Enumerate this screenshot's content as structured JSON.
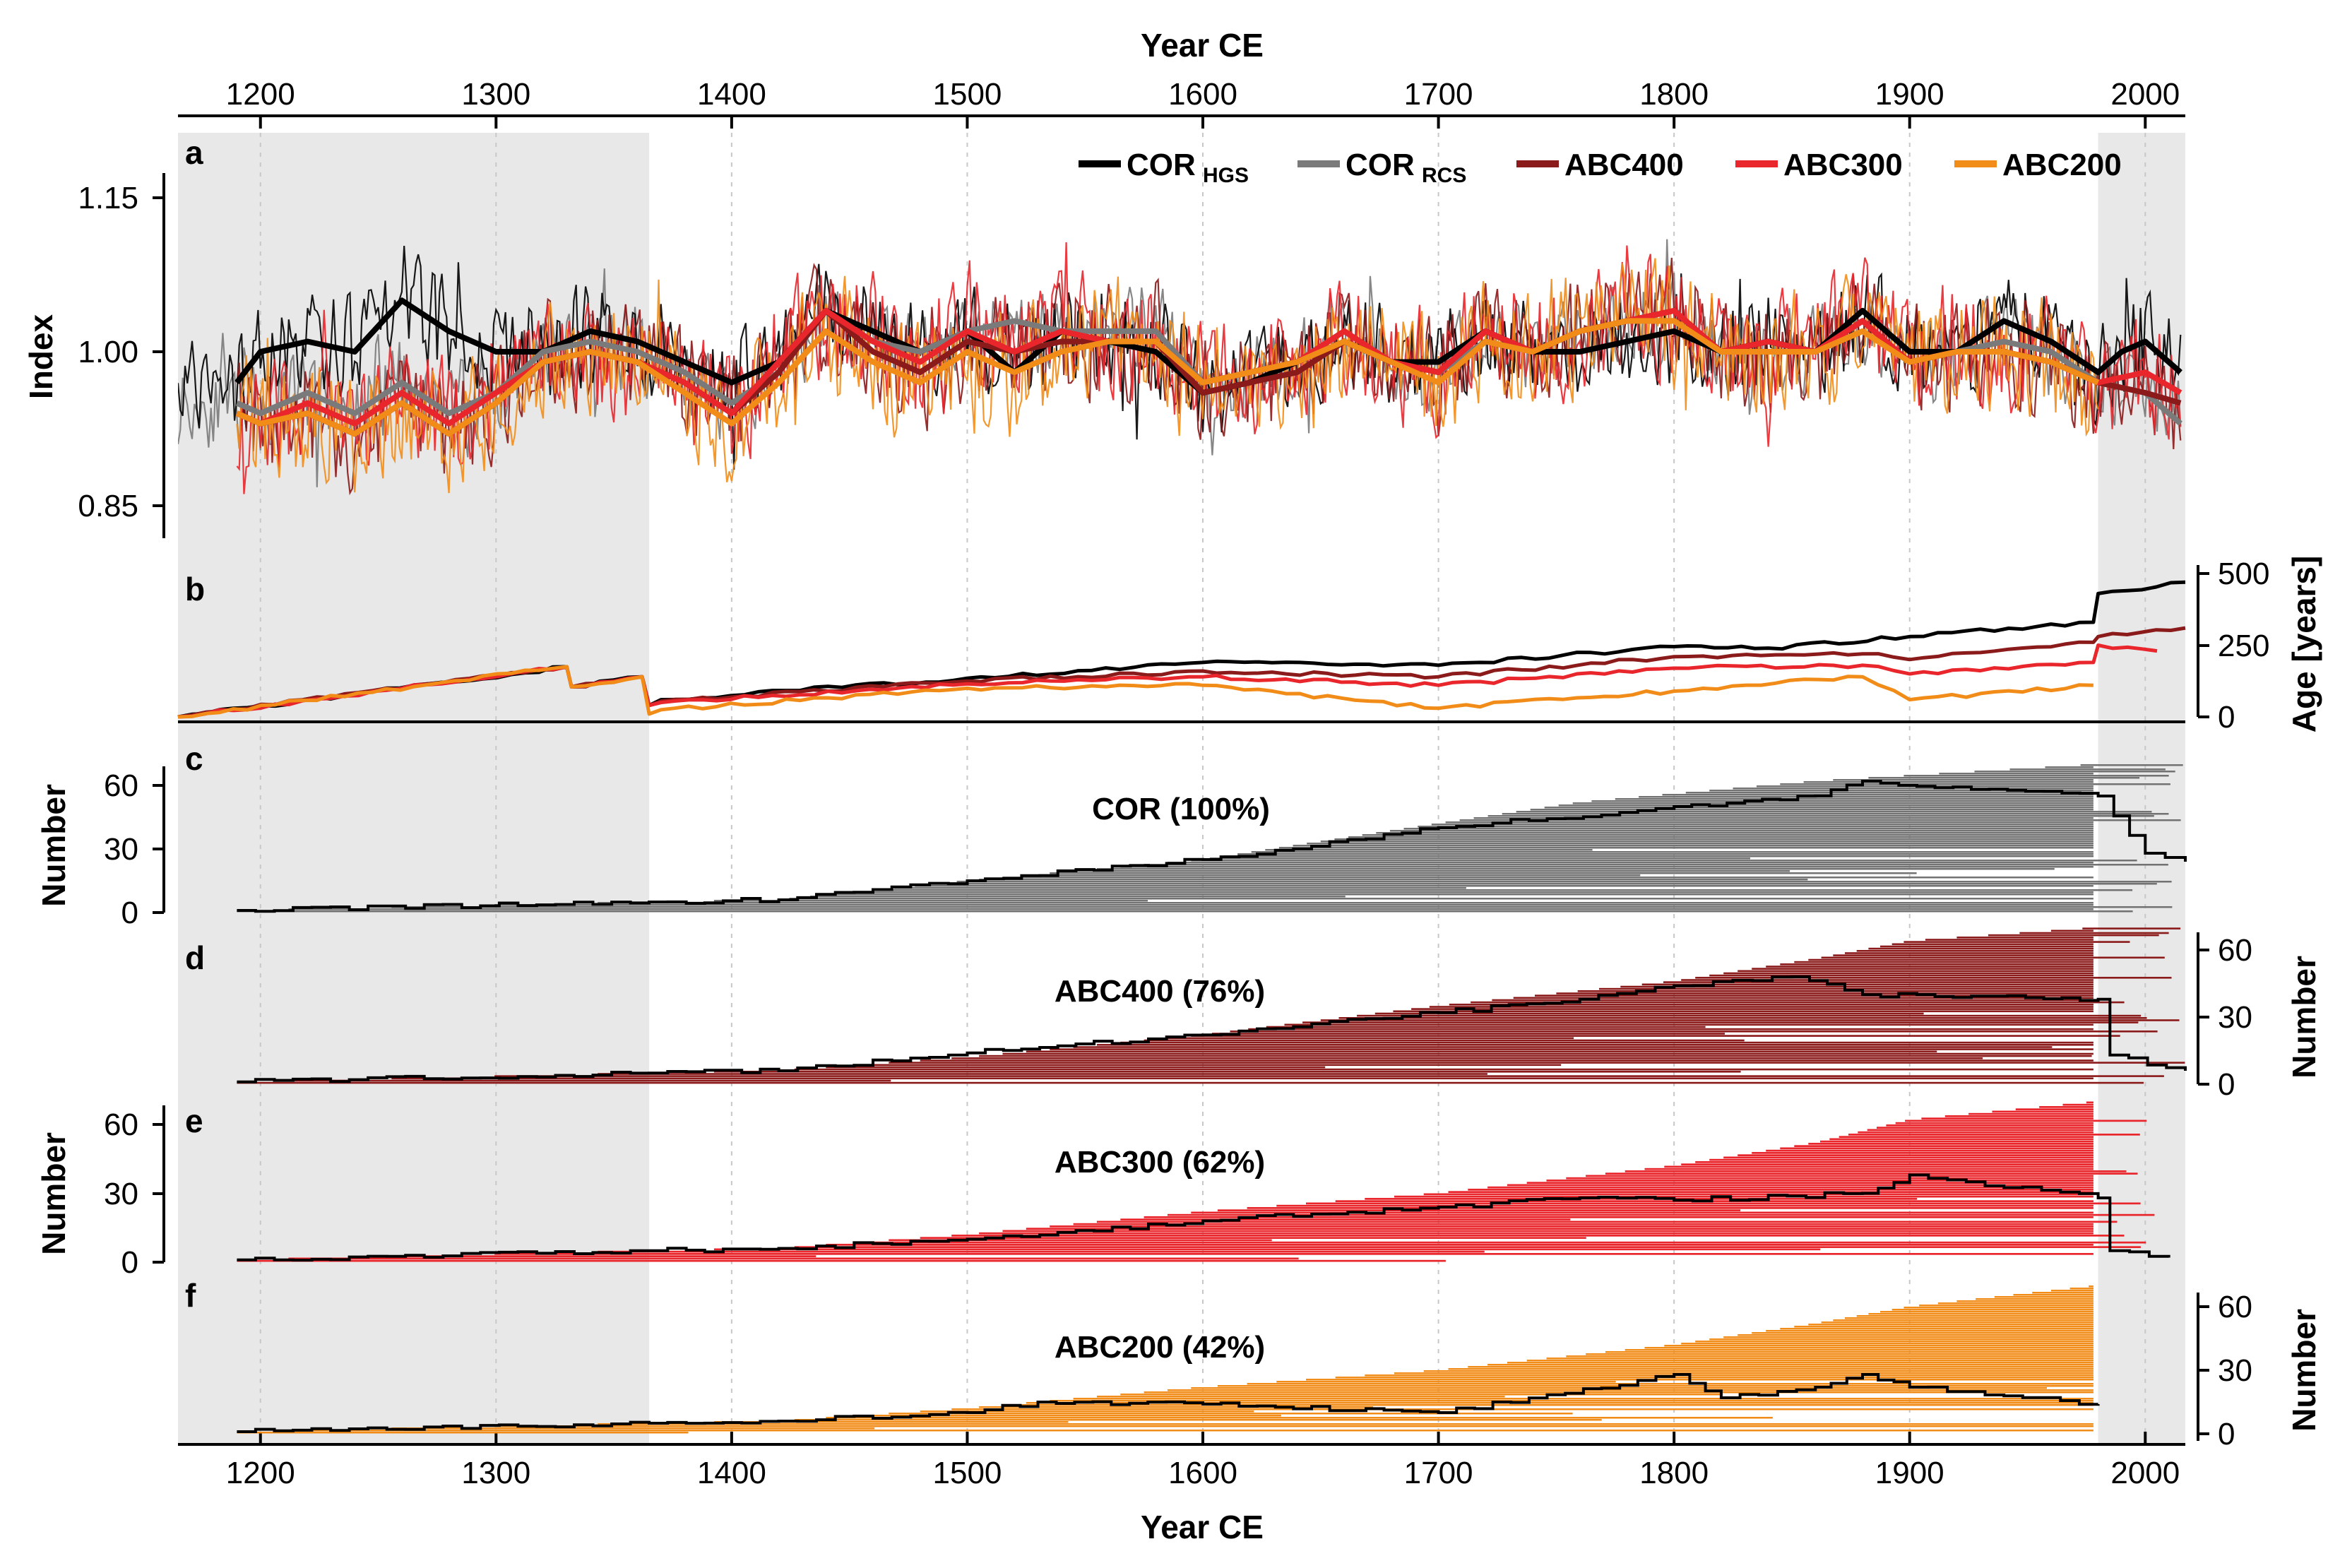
{
  "figure": {
    "x_title_top": "Year CE",
    "x_title_bottom": "Year CE",
    "x_ticks": [
      "1200",
      "1300",
      "1400",
      "1500",
      "1600",
      "1700",
      "1800",
      "1900",
      "2000"
    ],
    "colors": {
      "cor_hgs": "#000000",
      "cor_rcs": "#7a7a7a",
      "abc400": "#8b1a1a",
      "abc300": "#e8262c",
      "abc200": "#f28c18",
      "shade": "#e8e8e8",
      "cor_bars": "#727272"
    }
  },
  "panel_a": {
    "letter": "a",
    "ylabel": "Index",
    "yticks": [
      "1.15",
      "1.00",
      "0.85"
    ],
    "legend": [
      {
        "main": "COR",
        "sub": "HGS"
      },
      {
        "main": "COR",
        "sub": "RCS"
      },
      {
        "main": "ABC400",
        "sub": ""
      },
      {
        "main": "ABC300",
        "sub": ""
      },
      {
        "main": "ABC200",
        "sub": ""
      }
    ]
  },
  "panel_b": {
    "letter": "b",
    "ylabel": "Age [years]",
    "yticks": [
      "500",
      "250",
      "0"
    ]
  },
  "panel_c": {
    "letter": "c",
    "ylabel": "Number",
    "title": "COR (100%)",
    "yticks": [
      "60",
      "30",
      "0"
    ]
  },
  "panel_d": {
    "letter": "d",
    "ylabel": "Number",
    "title": "ABC400 (76%)",
    "yticks": [
      "60",
      "30",
      "0"
    ]
  },
  "panel_e": {
    "letter": "e",
    "ylabel": "Number",
    "title": "ABC300 (62%)",
    "yticks": [
      "60",
      "30",
      "0"
    ]
  },
  "panel_f": {
    "letter": "f",
    "ylabel": "Number",
    "title": "ABC200 (42%)",
    "yticks": [
      "60",
      "30",
      "0"
    ]
  },
  "chart_data": [
    {
      "type": "line",
      "panel": "a",
      "title": "",
      "xlabel": "Year CE",
      "ylabel": "Index",
      "xlim": [
        1165,
        2017
      ],
      "ylim": [
        0.8,
        1.2
      ],
      "shaded_x_ranges": [
        [
          1165,
          1365
        ],
        [
          1980,
          2017
        ]
      ],
      "series": [
        {
          "name": "COR_HGS",
          "x": [
            1190,
            1200,
            1220,
            1240,
            1260,
            1280,
            1300,
            1320,
            1340,
            1360,
            1380,
            1400,
            1420,
            1440,
            1460,
            1480,
            1500,
            1520,
            1540,
            1560,
            1580,
            1600,
            1620,
            1640,
            1660,
            1680,
            1700,
            1720,
            1740,
            1760,
            1780,
            1800,
            1820,
            1840,
            1860,
            1880,
            1900,
            1920,
            1940,
            1960,
            1980,
            1990,
            2000,
            2015
          ],
          "y": [
            0.97,
            1.0,
            1.01,
            1.0,
            1.05,
            1.02,
            1.0,
            1.0,
            1.02,
            1.01,
            0.99,
            0.97,
            0.99,
            1.04,
            1.02,
            1.0,
            1.02,
            0.98,
            1.02,
            1.01,
            1.0,
            0.96,
            0.97,
            0.99,
            1.01,
            0.99,
            0.99,
            1.02,
            1.0,
            1.0,
            1.01,
            1.02,
            1.0,
            1.01,
            1.0,
            1.04,
            1.0,
            1.0,
            1.03,
            1.01,
            0.98,
            1.0,
            1.01,
            0.98
          ]
        },
        {
          "name": "COR_RCS",
          "x": [
            1190,
            1200,
            1220,
            1240,
            1260,
            1280,
            1300,
            1320,
            1340,
            1360,
            1380,
            1400,
            1420,
            1440,
            1460,
            1480,
            1500,
            1520,
            1540,
            1560,
            1580,
            1600,
            1620,
            1640,
            1660,
            1680,
            1700,
            1720,
            1740,
            1760,
            1780,
            1800,
            1820,
            1840,
            1860,
            1880,
            1900,
            1920,
            1940,
            1960,
            1980,
            2000,
            2015
          ],
          "y": [
            0.95,
            0.94,
            0.96,
            0.94,
            0.97,
            0.94,
            0.96,
            1.0,
            1.01,
            1.0,
            0.98,
            0.95,
            0.98,
            1.04,
            1.01,
            1.0,
            1.02,
            1.03,
            1.02,
            1.02,
            1.02,
            0.97,
            0.98,
            0.99,
            1.02,
            0.99,
            0.98,
            1.01,
            1.0,
            1.02,
            1.03,
            1.03,
            1.0,
            1.0,
            1.0,
            1.03,
            0.99,
            1.0,
            1.01,
            1.0,
            0.97,
            0.96,
            0.93
          ]
        },
        {
          "name": "ABC400",
          "x": [
            1190,
            1200,
            1220,
            1240,
            1260,
            1280,
            1300,
            1320,
            1340,
            1360,
            1380,
            1400,
            1420,
            1440,
            1460,
            1480,
            1500,
            1520,
            1540,
            1560,
            1580,
            1600,
            1620,
            1640,
            1660,
            1680,
            1700,
            1720,
            1740,
            1760,
            1780,
            1800,
            1820,
            1840,
            1860,
            1880,
            1900,
            1920,
            1940,
            1960,
            1980,
            2000,
            2015
          ],
          "y": [
            0.94,
            0.93,
            0.94,
            0.92,
            0.95,
            0.92,
            0.95,
            0.99,
            1.0,
            0.99,
            0.97,
            0.94,
            0.98,
            1.04,
            1.0,
            0.98,
            1.01,
            1.0,
            1.01,
            1.01,
            1.01,
            0.96,
            0.97,
            0.98,
            1.01,
            0.99,
            0.98,
            1.02,
            1.0,
            1.02,
            1.03,
            1.04,
            1.0,
            1.0,
            1.0,
            1.03,
            0.99,
            1.0,
            1.0,
            0.99,
            0.97,
            0.96,
            0.95
          ]
        },
        {
          "name": "ABC300",
          "x": [
            1190,
            1200,
            1220,
            1240,
            1260,
            1280,
            1300,
            1320,
            1340,
            1360,
            1380,
            1400,
            1420,
            1440,
            1460,
            1480,
            1500,
            1520,
            1540,
            1560,
            1580,
            1600,
            1620,
            1640,
            1660,
            1680,
            1700,
            1720,
            1740,
            1760,
            1780,
            1800,
            1820,
            1840,
            1860,
            1880,
            1900,
            1920,
            1940,
            1960,
            1980,
            2000,
            2015
          ],
          "y": [
            0.94,
            0.93,
            0.95,
            0.93,
            0.96,
            0.93,
            0.96,
            0.99,
            1.0,
            0.99,
            0.97,
            0.94,
            0.99,
            1.04,
            1.01,
            0.99,
            1.02,
            1.0,
            1.02,
            1.01,
            1.01,
            0.97,
            0.98,
            0.99,
            1.02,
            0.99,
            0.98,
            1.02,
            1.0,
            1.02,
            1.03,
            1.04,
            1.0,
            1.01,
            1.0,
            1.03,
            0.99,
            1.0,
            1.0,
            0.99,
            0.97,
            0.98,
            0.96
          ]
        },
        {
          "name": "ABC200",
          "x": [
            1190,
            1200,
            1220,
            1240,
            1260,
            1280,
            1300,
            1320,
            1340,
            1360,
            1380,
            1400,
            1420,
            1440,
            1460,
            1480,
            1500,
            1520,
            1540,
            1560,
            1580,
            1600,
            1620,
            1640,
            1660,
            1680,
            1700,
            1720,
            1740,
            1760,
            1780,
            1800,
            1820,
            1840,
            1860,
            1880,
            1900,
            1920,
            1940,
            1960,
            1980
          ],
          "y": [
            0.94,
            0.93,
            0.94,
            0.92,
            0.95,
            0.92,
            0.95,
            0.99,
            1.0,
            0.99,
            0.96,
            0.93,
            0.97,
            1.02,
            0.99,
            0.97,
            1.0,
            0.98,
            1.0,
            1.01,
            1.01,
            0.97,
            0.98,
            0.99,
            1.01,
            0.99,
            0.97,
            1.01,
            1.0,
            1.02,
            1.03,
            1.03,
            1.0,
            1.0,
            1.0,
            1.02,
            0.99,
            1.0,
            1.0,
            0.99,
            0.97
          ]
        }
      ]
    },
    {
      "type": "line",
      "panel": "b",
      "xlabel": "Year CE",
      "ylabel": "Age [years]",
      "xlim": [
        1165,
        2017
      ],
      "ylim": [
        0,
        520
      ],
      "series": [
        {
          "name": "COR",
          "x": [
            1165,
            1330,
            1332,
            1362,
            1365,
            1370,
            1500,
            1600,
            1700,
            1800,
            1840,
            1900,
            1978,
            1980,
            2017
          ],
          "y": [
            0,
            175,
            105,
            140,
            40,
            60,
            135,
            190,
            180,
            245,
            240,
            280,
            330,
            430,
            470
          ]
        },
        {
          "name": "ABC400",
          "x": [
            1165,
            1330,
            1332,
            1362,
            1365,
            1370,
            1500,
            1600,
            1700,
            1800,
            1880,
            1900,
            1978,
            1980,
            2017
          ],
          "y": [
            0,
            175,
            105,
            140,
            40,
            55,
            125,
            160,
            140,
            210,
            220,
            200,
            260,
            280,
            310
          ]
        },
        {
          "name": "ABC300",
          "x": [
            1165,
            1330,
            1332,
            1362,
            1365,
            1370,
            1500,
            1600,
            1700,
            1800,
            1880,
            1900,
            1978,
            1980,
            2005
          ],
          "y": [
            0,
            175,
            105,
            140,
            40,
            50,
            115,
            140,
            110,
            170,
            180,
            150,
            190,
            250,
            230
          ]
        },
        {
          "name": "ABC200",
          "x": [
            1165,
            1330,
            1332,
            1362,
            1365,
            1370,
            1500,
            1600,
            1700,
            1800,
            1880,
            1900,
            1978
          ],
          "y": [
            0,
            175,
            105,
            140,
            10,
            25,
            100,
            110,
            30,
            90,
            140,
            60,
            110
          ]
        }
      ]
    },
    {
      "type": "area",
      "panel": "c",
      "title": "COR (100%)",
      "ylabel": "Number",
      "xlim": [
        1165,
        2017
      ],
      "ylim": [
        0,
        72
      ],
      "series": [
        {
          "name": "sample depth",
          "x": [
            1190,
            1365,
            1420,
            1500,
            1600,
            1700,
            1800,
            1860,
            1880,
            1980,
            2000,
            2017
          ],
          "y": [
            1,
            5,
            6,
            15,
            25,
            40,
            50,
            55,
            62,
            55,
            28,
            24
          ]
        },
        {
          "name": "series coverage",
          "x": [
            1190,
            1365,
            1420,
            1500,
            1600,
            1700,
            1760,
            1860,
            1980
          ],
          "y": [
            1,
            5,
            6,
            15,
            25,
            42,
            52,
            62,
            70
          ]
        }
      ]
    },
    {
      "type": "area",
      "panel": "d",
      "title": "ABC400 (76%)",
      "ylabel": "Number",
      "xlim": [
        1165,
        2017
      ],
      "ylim": [
        0,
        72
      ],
      "series": [
        {
          "name": "sample depth",
          "x": [
            1190,
            1365,
            1420,
            1500,
            1600,
            1700,
            1760,
            1800,
            1850,
            1880,
            1980,
            1985,
            2017
          ],
          "y": [
            1,
            5,
            6,
            14,
            22,
            32,
            38,
            44,
            48,
            40,
            38,
            13,
            6
          ]
        },
        {
          "name": "series coverage",
          "x": [
            1190,
            1365,
            1420,
            1500,
            1600,
            1700,
            1800,
            1860,
            1900,
            1980
          ],
          "y": [
            1,
            5,
            6,
            12,
            22,
            35,
            46,
            56,
            64,
            70
          ]
        }
      ]
    },
    {
      "type": "area",
      "panel": "e",
      "title": "ABC300 (62%)",
      "ylabel": "Number",
      "xlim": [
        1165,
        2017
      ],
      "ylim": [
        0,
        72
      ],
      "series": [
        {
          "name": "sample depth",
          "x": [
            1190,
            1365,
            1420,
            1500,
            1600,
            1700,
            1760,
            1800,
            1880,
            1900,
            1980,
            1985,
            2010
          ],
          "y": [
            1,
            5,
            6,
            10,
            18,
            24,
            28,
            27,
            30,
            38,
            28,
            5,
            2
          ]
        },
        {
          "name": "series coverage",
          "x": [
            1190,
            1365,
            1420,
            1500,
            1600,
            1700,
            1800,
            1860,
            1900,
            1980
          ],
          "y": [
            1,
            5,
            6,
            12,
            22,
            30,
            42,
            52,
            62,
            70
          ]
        }
      ]
    },
    {
      "type": "area",
      "panel": "f",
      "title": "ABC200 (42%)",
      "ylabel": "Number",
      "xlim": [
        1165,
        2017
      ],
      "ylim": [
        0,
        72
      ],
      "series": [
        {
          "name": "sample depth",
          "x": [
            1190,
            1365,
            1420,
            1500,
            1530,
            1600,
            1700,
            1800,
            1820,
            1860,
            1880,
            1900,
            1980
          ],
          "y": [
            1,
            5,
            6,
            10,
            15,
            14,
            10,
            28,
            17,
            22,
            28,
            22,
            14
          ]
        },
        {
          "name": "series coverage",
          "x": [
            1190,
            1365,
            1420,
            1500,
            1600,
            1700,
            1800,
            1860,
            1900,
            1980
          ],
          "y": [
            1,
            5,
            6,
            12,
            22,
            30,
            42,
            52,
            60,
            70
          ]
        }
      ]
    }
  ]
}
